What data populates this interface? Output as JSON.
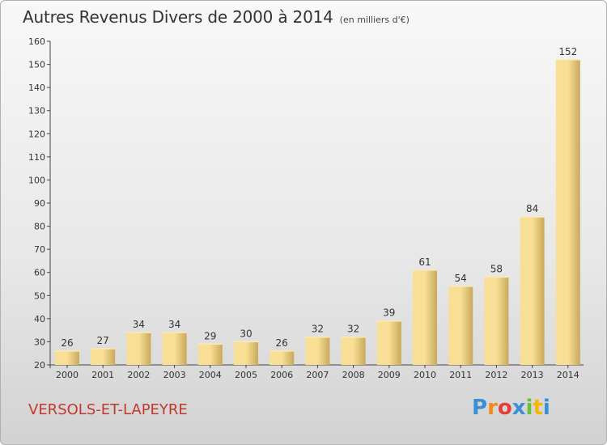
{
  "header": {
    "title": "Autres Revenus Divers de 2000 à 2014",
    "unit": "(en milliers d'€)"
  },
  "footer": {
    "commune": "VERSOLS-ET-LAPEYRE",
    "logo_letters": [
      "P",
      "r",
      "o",
      "x",
      "i",
      "t",
      "i"
    ],
    "logo_colors": [
      "#3a8fd6",
      "#f08a1c",
      "#e53b3b",
      "#3a8fd6",
      "#6abf3b",
      "#f5b800",
      "#3a8fd6"
    ]
  },
  "colors": {
    "bar_light": "#f8df95",
    "bar_dark": "#c9a95a",
    "text": "#333333"
  },
  "chart_data": {
    "type": "bar",
    "title": "Autres Revenus Divers de 2000 à 2014",
    "subtitle": "(en milliers d'€)",
    "categories": [
      "2000",
      "2001",
      "2002",
      "2003",
      "2004",
      "2005",
      "2006",
      "2007",
      "2008",
      "2009",
      "2010",
      "2011",
      "2012",
      "2013",
      "2014"
    ],
    "values": [
      26,
      27,
      34,
      34,
      29,
      30,
      26,
      32,
      32,
      39,
      61,
      54,
      58,
      84,
      152
    ],
    "ylim": [
      20,
      160
    ],
    "yticks": [
      20,
      30,
      40,
      50,
      60,
      70,
      80,
      90,
      100,
      110,
      120,
      130,
      140,
      150,
      160
    ],
    "xlabel": "",
    "ylabel": "",
    "grid": false,
    "data_labels": true
  }
}
